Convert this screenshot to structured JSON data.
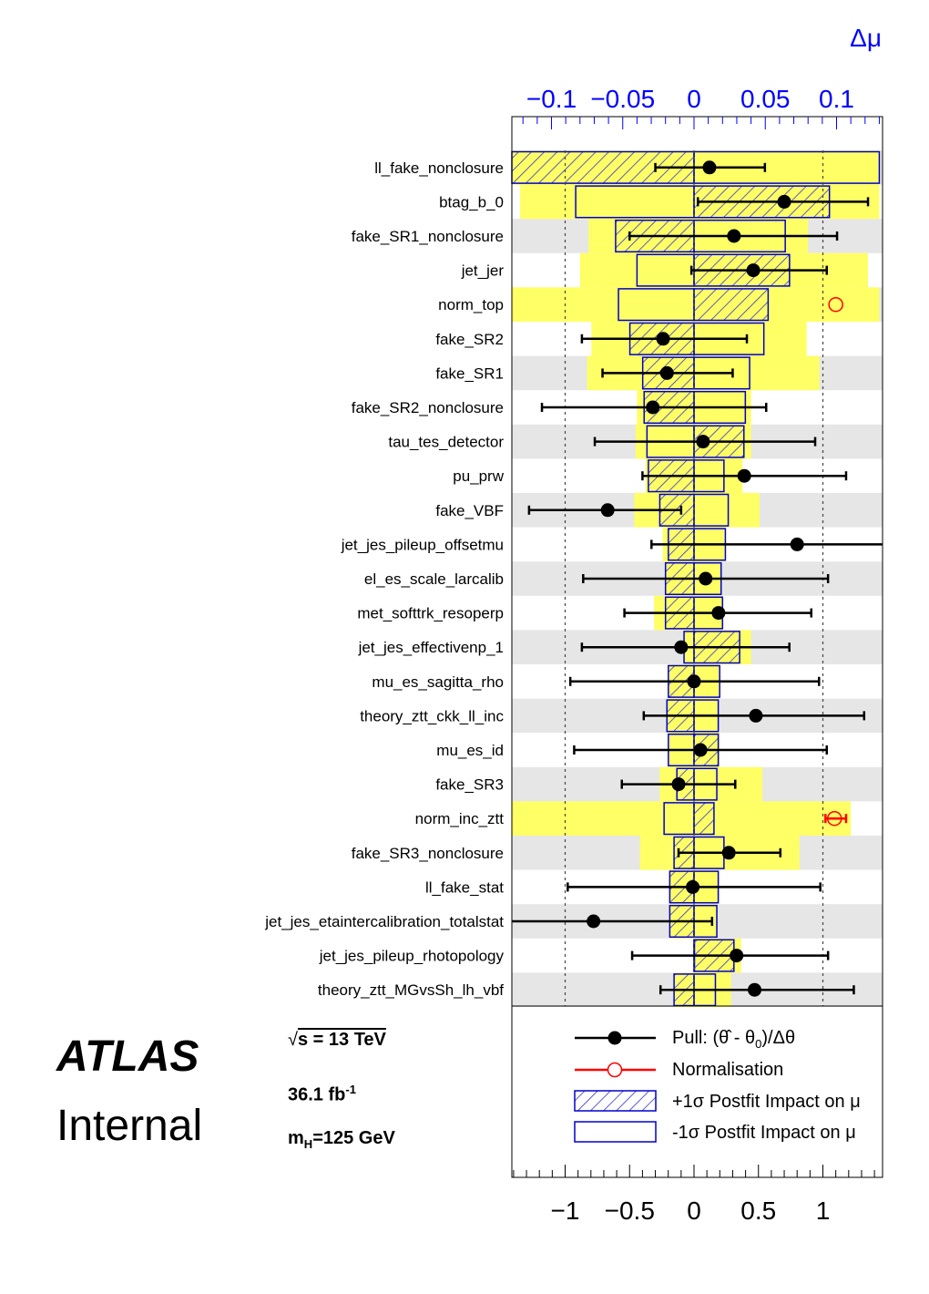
{
  "chart_data": {
    "type": "ranking",
    "title": "",
    "top_axis": {
      "label": "Δμ",
      "range": [
        -0.13,
        0.13
      ],
      "ticks": [
        "−0.1",
        "−0.05",
        "0",
        "0.05",
        "0.1"
      ],
      "tick_values": [
        -0.1,
        -0.05,
        0,
        0.05,
        0.1
      ],
      "color": "#0000ff"
    },
    "bottom_axis": {
      "label": "",
      "range": [
        -1.44,
        1.47
      ],
      "ticks": [
        "−1",
        "−0.5",
        "0",
        "0.5",
        "1"
      ],
      "tick_values": [
        -1,
        -0.5,
        0,
        0.5,
        1
      ]
    },
    "parameters": [
      {
        "name": "ll_fake_nonclosure",
        "pull": 0.12,
        "err_lo": -0.3,
        "err_hi": 0.55,
        "plus": -0.13,
        "minus": 0.13,
        "pre_lo": -0.13,
        "pre_hi": 0.13,
        "norm": false
      },
      {
        "name": "btag_b_0",
        "pull": 0.7,
        "err_lo": 0.03,
        "err_hi": 1.35,
        "plus": 0.095,
        "minus": -0.083,
        "pre_lo": -0.122,
        "pre_hi": 0.13,
        "norm": false
      },
      {
        "name": "fake_SR1_nonclosure",
        "pull": 0.31,
        "err_lo": -0.5,
        "err_hi": 1.11,
        "plus": -0.055,
        "minus": 0.064,
        "pre_lo": -0.074,
        "pre_hi": 0.08,
        "norm": false
      },
      {
        "name": "jet_jer",
        "pull": 0.46,
        "err_lo": -0.02,
        "err_hi": 1.03,
        "plus": 0.067,
        "minus": -0.04,
        "pre_lo": -0.08,
        "pre_hi": 0.122,
        "norm": false
      },
      {
        "name": "norm_top",
        "pull": 1.1,
        "err_lo": 1.1,
        "err_hi": 1.1,
        "plus": 0.052,
        "minus": -0.053,
        "pre_lo": -0.13,
        "pre_hi": 0.13,
        "norm": true
      },
      {
        "name": "fake_SR2",
        "pull": -0.24,
        "err_lo": -0.87,
        "err_hi": 0.41,
        "plus": -0.045,
        "minus": 0.049,
        "pre_lo": -0.072,
        "pre_hi": 0.079,
        "norm": false
      },
      {
        "name": "fake_SR1",
        "pull": -0.21,
        "err_lo": -0.71,
        "err_hi": 0.3,
        "plus": -0.036,
        "minus": 0.039,
        "pre_lo": -0.075,
        "pre_hi": 0.088,
        "norm": false
      },
      {
        "name": "fake_SR2_nonclosure",
        "pull": -0.32,
        "err_lo": -1.18,
        "err_hi": 0.56,
        "plus": -0.035,
        "minus": 0.036,
        "pre_lo": -0.04,
        "pre_hi": 0.04,
        "norm": false
      },
      {
        "name": "tau_tes_detector",
        "pull": 0.07,
        "err_lo": -0.77,
        "err_hi": 0.94,
        "plus": 0.035,
        "minus": -0.033,
        "pre_lo": -0.041,
        "pre_hi": 0.04,
        "norm": false
      },
      {
        "name": "pu_prw",
        "pull": 0.39,
        "err_lo": -0.4,
        "err_hi": 1.18,
        "plus": -0.032,
        "minus": 0.021,
        "pre_lo": -0.034,
        "pre_hi": 0.034,
        "norm": false
      },
      {
        "name": "fake_VBF",
        "pull": -0.67,
        "err_lo": -1.28,
        "err_hi": -0.1,
        "plus": -0.024,
        "minus": 0.024,
        "pre_lo": -0.042,
        "pre_hi": 0.046,
        "norm": false
      },
      {
        "name": "jet_jes_pileup_offsetmu",
        "pull": 0.8,
        "err_lo": -0.33,
        "err_hi": 1.47,
        "plus": -0.018,
        "minus": 0.022,
        "pre_lo": -0.022,
        "pre_hi": 0.022,
        "norm": false
      },
      {
        "name": "el_es_scale_larcalib",
        "pull": 0.09,
        "err_lo": -0.86,
        "err_hi": 1.04,
        "plus": -0.02,
        "minus": 0.019,
        "pre_lo": -0.02,
        "pre_hi": 0.019,
        "norm": false
      },
      {
        "name": "met_softtrk_resoperp",
        "pull": 0.19,
        "err_lo": -0.54,
        "err_hi": 0.91,
        "plus": -0.02,
        "minus": 0.02,
        "pre_lo": -0.028,
        "pre_hi": 0.02,
        "norm": false
      },
      {
        "name": "jet_jes_effectivenp_1",
        "pull": -0.1,
        "err_lo": -0.87,
        "err_hi": 0.74,
        "plus": 0.032,
        "minus": -0.007,
        "pre_lo": -0.007,
        "pre_hi": 0.04,
        "norm": false
      },
      {
        "name": "mu_es_sagitta_rho",
        "pull": 0.0,
        "err_lo": -0.96,
        "err_hi": 0.97,
        "plus": -0.018,
        "minus": 0.018,
        "pre_lo": -0.018,
        "pre_hi": 0.018,
        "norm": false
      },
      {
        "name": "theory_ztt_ckk_ll_inc",
        "pull": 0.48,
        "err_lo": -0.39,
        "err_hi": 1.32,
        "plus": -0.019,
        "minus": 0.017,
        "pre_lo": -0.019,
        "pre_hi": 0.017,
        "norm": false
      },
      {
        "name": "mu_es_id",
        "pull": 0.05,
        "err_lo": -0.93,
        "err_hi": 1.03,
        "plus": 0.017,
        "minus": -0.018,
        "pre_lo": -0.018,
        "pre_hi": 0.018,
        "norm": false
      },
      {
        "name": "fake_SR3",
        "pull": -0.12,
        "err_lo": -0.56,
        "err_hi": 0.32,
        "plus": -0.012,
        "minus": 0.016,
        "pre_lo": -0.024,
        "pre_hi": 0.048,
        "norm": false
      },
      {
        "name": "norm_inc_ztt",
        "pull": 1.09,
        "err_lo": 1.02,
        "err_hi": 1.18,
        "plus": 0.014,
        "minus": -0.021,
        "pre_lo": -0.13,
        "pre_hi": 0.11,
        "norm": true
      },
      {
        "name": "fake_SR3_nonclosure",
        "pull": 0.27,
        "err_lo": -0.12,
        "err_hi": 0.67,
        "plus": -0.014,
        "minus": 0.021,
        "pre_lo": -0.038,
        "pre_hi": 0.074,
        "norm": false
      },
      {
        "name": "ll_fake_stat",
        "pull": -0.01,
        "err_lo": -0.98,
        "err_hi": 0.98,
        "plus": -0.017,
        "minus": 0.017,
        "pre_lo": -0.017,
        "pre_hi": 0.017,
        "norm": false
      },
      {
        "name": "jet_jes_etaintercalibration_totalstat",
        "pull": -0.78,
        "err_lo": -1.44,
        "err_hi": 0.14,
        "plus": -0.017,
        "minus": 0.016,
        "pre_lo": -0.017,
        "pre_hi": 0.016,
        "norm": false
      },
      {
        "name": "jet_jes_pileup_rhotopology",
        "pull": 0.33,
        "err_lo": -0.48,
        "err_hi": 1.04,
        "plus": 0.028,
        "minus": 0.0,
        "pre_lo": 0.0,
        "pre_hi": 0.033,
        "norm": false
      },
      {
        "name": "theory_ztt_MGvsSh_lh_vbf",
        "pull": 0.47,
        "err_lo": -0.26,
        "err_hi": 1.24,
        "plus": -0.014,
        "minus": 0.015,
        "pre_lo": -0.014,
        "pre_hi": 0.026,
        "norm": false
      }
    ]
  },
  "legend": {
    "pull": "Pull: (θ̂ - θ",
    "pull_sub": "0",
    "pull_tail": ")/Δθ",
    "norm": "Normalisation",
    "plus": "+1σ Postfit Impact on μ",
    "minus": "-1σ Postfit Impact on μ"
  },
  "labels": {
    "atlas": "ATLAS",
    "internal": "Internal",
    "sqrt": "√",
    "sqrt_s": "s = 13 TeV",
    "lumi": "36.1 fb",
    "lumi_exp": "-1",
    "mass": "m",
    "mass_sub": "H",
    "mass_tail": "=125 GeV"
  },
  "colors": {
    "prefit_band": "#ffff66",
    "impact_blue": "#0000cc",
    "stripe": "#e6e6e6",
    "norm_red": "#ff0000",
    "top_axis": "#0000ff"
  }
}
